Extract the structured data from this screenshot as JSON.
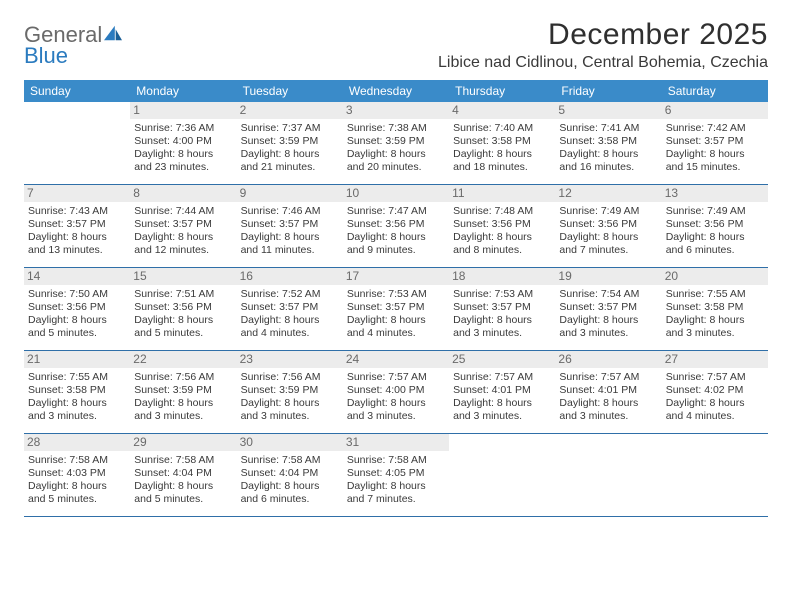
{
  "logo": {
    "word1": "General",
    "word2": "Blue"
  },
  "title": "December 2025",
  "location": "Libice nad Cidlinou, Central Bohemia, Czechia",
  "colors": {
    "header_bg": "#3a8bc9",
    "header_text": "#ffffff",
    "week_border": "#2f6fa8",
    "daynum_bg": "#ececec",
    "daynum_text": "#6a6a6a",
    "body_text": "#3a3a3a",
    "logo_gray": "#6a6a6a",
    "logo_blue": "#2b7bbf"
  },
  "days_of_week": [
    "Sunday",
    "Monday",
    "Tuesday",
    "Wednesday",
    "Thursday",
    "Friday",
    "Saturday"
  ],
  "weeks": [
    [
      null,
      {
        "n": "1",
        "sr": "Sunrise: 7:36 AM",
        "ss": "Sunset: 4:00 PM",
        "d1": "Daylight: 8 hours",
        "d2": "and 23 minutes."
      },
      {
        "n": "2",
        "sr": "Sunrise: 7:37 AM",
        "ss": "Sunset: 3:59 PM",
        "d1": "Daylight: 8 hours",
        "d2": "and 21 minutes."
      },
      {
        "n": "3",
        "sr": "Sunrise: 7:38 AM",
        "ss": "Sunset: 3:59 PM",
        "d1": "Daylight: 8 hours",
        "d2": "and 20 minutes."
      },
      {
        "n": "4",
        "sr": "Sunrise: 7:40 AM",
        "ss": "Sunset: 3:58 PM",
        "d1": "Daylight: 8 hours",
        "d2": "and 18 minutes."
      },
      {
        "n": "5",
        "sr": "Sunrise: 7:41 AM",
        "ss": "Sunset: 3:58 PM",
        "d1": "Daylight: 8 hours",
        "d2": "and 16 minutes."
      },
      {
        "n": "6",
        "sr": "Sunrise: 7:42 AM",
        "ss": "Sunset: 3:57 PM",
        "d1": "Daylight: 8 hours",
        "d2": "and 15 minutes."
      }
    ],
    [
      {
        "n": "7",
        "sr": "Sunrise: 7:43 AM",
        "ss": "Sunset: 3:57 PM",
        "d1": "Daylight: 8 hours",
        "d2": "and 13 minutes."
      },
      {
        "n": "8",
        "sr": "Sunrise: 7:44 AM",
        "ss": "Sunset: 3:57 PM",
        "d1": "Daylight: 8 hours",
        "d2": "and 12 minutes."
      },
      {
        "n": "9",
        "sr": "Sunrise: 7:46 AM",
        "ss": "Sunset: 3:57 PM",
        "d1": "Daylight: 8 hours",
        "d2": "and 11 minutes."
      },
      {
        "n": "10",
        "sr": "Sunrise: 7:47 AM",
        "ss": "Sunset: 3:56 PM",
        "d1": "Daylight: 8 hours",
        "d2": "and 9 minutes."
      },
      {
        "n": "11",
        "sr": "Sunrise: 7:48 AM",
        "ss": "Sunset: 3:56 PM",
        "d1": "Daylight: 8 hours",
        "d2": "and 8 minutes."
      },
      {
        "n": "12",
        "sr": "Sunrise: 7:49 AM",
        "ss": "Sunset: 3:56 PM",
        "d1": "Daylight: 8 hours",
        "d2": "and 7 minutes."
      },
      {
        "n": "13",
        "sr": "Sunrise: 7:49 AM",
        "ss": "Sunset: 3:56 PM",
        "d1": "Daylight: 8 hours",
        "d2": "and 6 minutes."
      }
    ],
    [
      {
        "n": "14",
        "sr": "Sunrise: 7:50 AM",
        "ss": "Sunset: 3:56 PM",
        "d1": "Daylight: 8 hours",
        "d2": "and 5 minutes."
      },
      {
        "n": "15",
        "sr": "Sunrise: 7:51 AM",
        "ss": "Sunset: 3:56 PM",
        "d1": "Daylight: 8 hours",
        "d2": "and 5 minutes."
      },
      {
        "n": "16",
        "sr": "Sunrise: 7:52 AM",
        "ss": "Sunset: 3:57 PM",
        "d1": "Daylight: 8 hours",
        "d2": "and 4 minutes."
      },
      {
        "n": "17",
        "sr": "Sunrise: 7:53 AM",
        "ss": "Sunset: 3:57 PM",
        "d1": "Daylight: 8 hours",
        "d2": "and 4 minutes."
      },
      {
        "n": "18",
        "sr": "Sunrise: 7:53 AM",
        "ss": "Sunset: 3:57 PM",
        "d1": "Daylight: 8 hours",
        "d2": "and 3 minutes."
      },
      {
        "n": "19",
        "sr": "Sunrise: 7:54 AM",
        "ss": "Sunset: 3:57 PM",
        "d1": "Daylight: 8 hours",
        "d2": "and 3 minutes."
      },
      {
        "n": "20",
        "sr": "Sunrise: 7:55 AM",
        "ss": "Sunset: 3:58 PM",
        "d1": "Daylight: 8 hours",
        "d2": "and 3 minutes."
      }
    ],
    [
      {
        "n": "21",
        "sr": "Sunrise: 7:55 AM",
        "ss": "Sunset: 3:58 PM",
        "d1": "Daylight: 8 hours",
        "d2": "and 3 minutes."
      },
      {
        "n": "22",
        "sr": "Sunrise: 7:56 AM",
        "ss": "Sunset: 3:59 PM",
        "d1": "Daylight: 8 hours",
        "d2": "and 3 minutes."
      },
      {
        "n": "23",
        "sr": "Sunrise: 7:56 AM",
        "ss": "Sunset: 3:59 PM",
        "d1": "Daylight: 8 hours",
        "d2": "and 3 minutes."
      },
      {
        "n": "24",
        "sr": "Sunrise: 7:57 AM",
        "ss": "Sunset: 4:00 PM",
        "d1": "Daylight: 8 hours",
        "d2": "and 3 minutes."
      },
      {
        "n": "25",
        "sr": "Sunrise: 7:57 AM",
        "ss": "Sunset: 4:01 PM",
        "d1": "Daylight: 8 hours",
        "d2": "and 3 minutes."
      },
      {
        "n": "26",
        "sr": "Sunrise: 7:57 AM",
        "ss": "Sunset: 4:01 PM",
        "d1": "Daylight: 8 hours",
        "d2": "and 3 minutes."
      },
      {
        "n": "27",
        "sr": "Sunrise: 7:57 AM",
        "ss": "Sunset: 4:02 PM",
        "d1": "Daylight: 8 hours",
        "d2": "and 4 minutes."
      }
    ],
    [
      {
        "n": "28",
        "sr": "Sunrise: 7:58 AM",
        "ss": "Sunset: 4:03 PM",
        "d1": "Daylight: 8 hours",
        "d2": "and 5 minutes."
      },
      {
        "n": "29",
        "sr": "Sunrise: 7:58 AM",
        "ss": "Sunset: 4:04 PM",
        "d1": "Daylight: 8 hours",
        "d2": "and 5 minutes."
      },
      {
        "n": "30",
        "sr": "Sunrise: 7:58 AM",
        "ss": "Sunset: 4:04 PM",
        "d1": "Daylight: 8 hours",
        "d2": "and 6 minutes."
      },
      {
        "n": "31",
        "sr": "Sunrise: 7:58 AM",
        "ss": "Sunset: 4:05 PM",
        "d1": "Daylight: 8 hours",
        "d2": "and 7 minutes."
      },
      null,
      null,
      null
    ]
  ]
}
